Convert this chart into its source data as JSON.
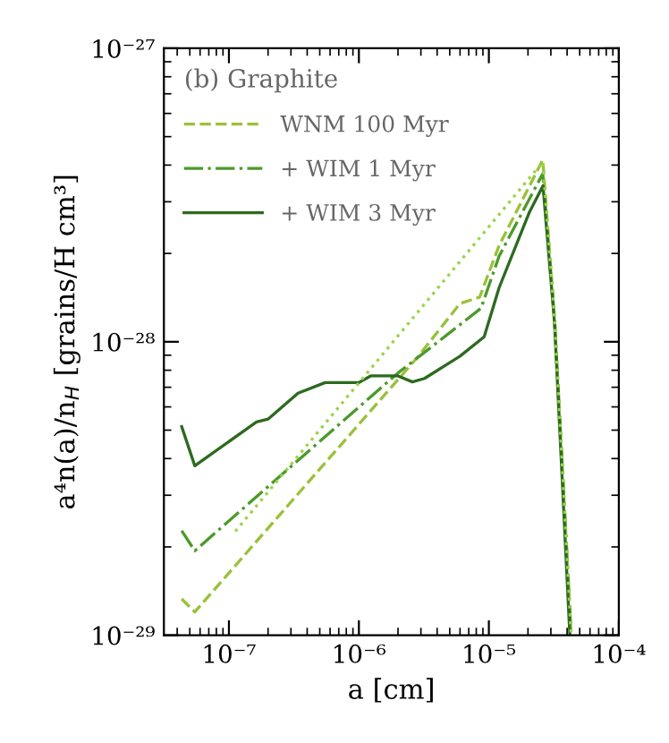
{
  "chart_data": {
    "type": "line",
    "xlabel": "a [cm]",
    "ylabel": "a⁴n(a)/n$_{H}$ [grains/H cm³]",
    "log": "xy",
    "xlim": [
      3.16e-08,
      0.0001
    ],
    "ylim": [
      1e-29,
      1e-27
    ],
    "xticks": [
      {
        "value": 1e-07,
        "label": "10⁻⁷"
      },
      {
        "value": 1e-06,
        "label": "10⁻⁶"
      },
      {
        "value": 1e-05,
        "label": "10⁻⁵"
      },
      {
        "value": 0.0001,
        "label": "10⁻⁴"
      }
    ],
    "yticks": [
      {
        "value": 1e-29,
        "label": "10⁻²⁹"
      },
      {
        "value": 1e-28,
        "label": "10⁻²⁸"
      },
      {
        "value": 1e-27,
        "label": "10⁻²⁷"
      }
    ],
    "grid": false,
    "legend": "top left",
    "legend_title": "(b) Graphite",
    "series": [
      {
        "name": "WNM 100 Myr",
        "color": "#9ac13a",
        "line_style": "dashed",
        "x": [
          4.33e-08,
          5.46e-08,
          2.85e-06,
          6e-06,
          8.5e-06,
          1.2e-05,
          2.6e-05,
          3.2e-05,
          4.3e-05
        ],
        "values": [
          1.33e-29,
          1.2e-29,
          8.9e-29,
          1.35e-28,
          1.42e-28,
          2.13e-28,
          4.17e-28,
          1.2e-28,
          1e-29
        ]
      },
      {
        "name": "+ WIM 1 Myr",
        "color": "#4c9a2a",
        "line_style": "dashdot",
        "x": [
          4.33e-08,
          5.46e-08,
          2e-06,
          8.7e-06,
          1.2e-05,
          2.6e-05,
          3.2e-05,
          4.3e-05
        ],
        "values": [
          2.27e-29,
          1.94e-29,
          7.83e-29,
          1.3e-28,
          1.96e-28,
          3.74e-28,
          1.2e-28,
          1e-29
        ]
      },
      {
        "name": "+ WIM 3 Myr",
        "color": "#2d6a1f",
        "line_style": "solid",
        "x": [
          4.33e-08,
          5.46e-08,
          1.63e-07,
          2e-07,
          3.4e-07,
          5.5e-07,
          1e-06,
          1.23e-06,
          2e-06,
          2.58e-06,
          3.2e-06,
          6e-06,
          9.2e-06,
          1.2e-05,
          2.04e-05,
          2.61e-05,
          3.2e-05,
          4.2e-05
        ],
        "values": [
          5.14e-29,
          3.78e-29,
          5.33e-29,
          5.45e-29,
          6.68e-29,
          7.26e-29,
          7.26e-29,
          7.65e-29,
          7.65e-29,
          7.3e-29,
          7.5e-29,
          8.93e-29,
          1.04e-28,
          1.53e-28,
          2.75e-28,
          3.4e-28,
          1.16e-28,
          1e-29
        ]
      },
      {
        "color": "#9dd34b",
        "line_style": "dotted",
        "x": [
          1.12e-07,
          2.6e-05,
          3.2e-05,
          4.3e-05
        ],
        "values": [
          2.26e-29,
          4.1e-28,
          1.2e-28,
          1e-29
        ]
      }
    ]
  }
}
